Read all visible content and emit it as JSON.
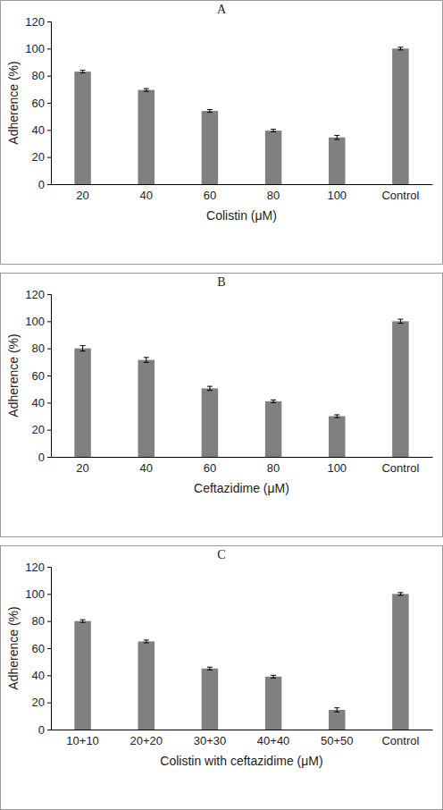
{
  "chart_data": [
    {
      "type": "bar",
      "title": "A",
      "y_label": "Adherence (%)",
      "x_label": "Colistin (μM)",
      "categories": [
        "20",
        "40",
        "60",
        "80",
        "100",
        "Control"
      ],
      "values": [
        83,
        69.5,
        54,
        39.5,
        34.5,
        100
      ],
      "error": [
        1,
        1,
        1,
        1,
        1.5,
        1
      ],
      "color": "#808080",
      "ylim": [
        0,
        120
      ],
      "yticks": [
        0,
        20,
        40,
        60,
        80,
        100,
        120
      ],
      "grid": false
    },
    {
      "type": "bar",
      "title": "B",
      "y_label": "Adherence (%)",
      "x_label": "Ceftazidime (μM)",
      "categories": [
        "20",
        "40",
        "60",
        "80",
        "100",
        "Control"
      ],
      "values": [
        80,
        71.5,
        50.5,
        41,
        30,
        100
      ],
      "error": [
        2,
        1.8,
        1.5,
        1,
        1,
        1.5
      ],
      "color": "#808080",
      "ylim": [
        0,
        120
      ],
      "yticks": [
        0,
        20,
        40,
        60,
        80,
        100,
        120
      ],
      "grid": false
    },
    {
      "type": "bar",
      "title": "C",
      "y_label": "Adherence (%)",
      "x_label": "Colistin with  ceftazidime (μM)",
      "categories": [
        "10+10",
        "20+20",
        "30+30",
        "40+40",
        "50+50",
        "Control"
      ],
      "values": [
        80,
        65,
        45,
        39,
        14.5,
        100
      ],
      "error": [
        1,
        1,
        1,
        1,
        1.5,
        1
      ],
      "color": "#808080",
      "ylim": [
        0,
        120
      ],
      "yticks": [
        0,
        20,
        40,
        60,
        80,
        100,
        120
      ],
      "grid": false
    }
  ]
}
